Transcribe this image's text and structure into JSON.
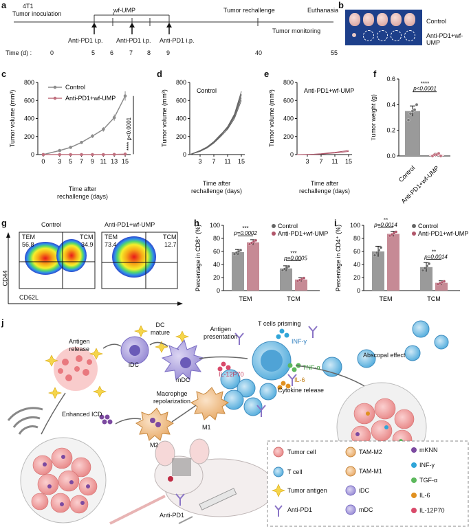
{
  "panels": {
    "a": {
      "label": "a",
      "events": {
        "inoculation_line1": "4T1",
        "inoculation_line2": "Tumor inoculation",
        "treatment": "wf-UMP",
        "rechallenge": "Tumor rechallenge",
        "euthanasia": "Euthanasia",
        "monitoring": "Tumor monitoring",
        "anti_pd1_1": "Anti-PD1 i.p.",
        "anti_pd1_2": "Anti-PD1 i.p.",
        "anti_pd1_3": "Anti-PD1 i.p."
      },
      "time_label": "Time (d) :",
      "ticks": [
        "0",
        "5",
        "6",
        "7",
        "8",
        "9",
        "40",
        "55"
      ]
    },
    "b": {
      "label": "b",
      "row1": "Control",
      "row2": "Anti-PD1+wf-UMP",
      "tumor_count": 5
    },
    "c": {
      "label": "c",
      "ylabel": "Tumor volume (mm³)",
      "xlabel_1": "Time after",
      "xlabel_2": "rechallenge (days)",
      "legend": [
        "Control",
        "Anti-PD1+wf-UMP"
      ],
      "significance": "****",
      "pvalue": "p<0.0001"
    },
    "d": {
      "label": "d",
      "title": "Control",
      "ylabel": "Tumor volume (mm³)",
      "xlabel_1": "Time after",
      "xlabel_2": "rechallenge (days)"
    },
    "e": {
      "label": "e",
      "title": "Anti-PD1+wf-UMP",
      "ylabel": "Tumor volume (mm³)",
      "xlabel_1": "Time after",
      "xlabel_2": "rechallenge (days)"
    },
    "f": {
      "label": "f",
      "ylabel": "Tumor weight (g)",
      "categories": [
        "Control",
        "Anti-PD1+wf-UMP"
      ],
      "significance": "****",
      "pvalue": "p<0.0001"
    },
    "g": {
      "label": "g",
      "titles": [
        "Control",
        "Anti-PD1+wf-UMP"
      ],
      "quadrants": [
        {
          "tem_label": "TEM",
          "tem": "56.8",
          "tcm_label": "TCM",
          "tcm": "34.9"
        },
        {
          "tem_label": "TEM",
          "tem": "73.4",
          "tcm_label": "TCM",
          "tcm": "12.7"
        }
      ],
      "yaxis": "CD44",
      "xaxis": "CD62L"
    },
    "h": {
      "label": "h",
      "ylabel": "Percentage in CD8⁺ (%)",
      "legend": [
        "Control",
        "Anti-PD1+wf-UMP"
      ],
      "sig1": "***",
      "p1": "p=0.0002",
      "sig2": "***",
      "p2": "p=0.0005"
    },
    "i": {
      "label": "i",
      "ylabel": "Percentage in CD4⁺ (%)",
      "legend": [
        "Control",
        "Anti-PD1+wf-UMP"
      ],
      "sig1": "**",
      "p1": "p=0.0014",
      "sig2": "**",
      "p2": "p=0.0014"
    },
    "j": {
      "label": "j",
      "texts": {
        "antigen_release": "Antigen\nrelease",
        "idc": "iDC",
        "dc_mature": "DC\nmature",
        "mdc": "mDC",
        "antigen_presentation": "Antigen\npresentation",
        "t_priming": "T cells prisming",
        "infg": "INF-γ",
        "tnfa": "TNF-α",
        "il6": "IL-6",
        "il12": "IL-12P70",
        "cytokine": "Cytokine release",
        "abscopal": "Abscopal effect",
        "macrophage": "Macrophge\nrepolarization",
        "m1": "M1",
        "m2": "M2",
        "enhanced_icd": "Enhanced ICD",
        "anti_pd1": "Anti-PD1"
      },
      "legend": [
        "Tumor cell",
        "TAM-M2",
        "mKNN",
        "T cell",
        "TAM-M1",
        "INF-γ",
        "Tumor antigen",
        "iDC",
        "TGF-α",
        "Anti-PD1",
        "mDC",
        "IL-6",
        "IL-12P70"
      ]
    }
  },
  "chart_data": [
    {
      "type": "line",
      "panel": "c",
      "x": [
        0,
        3,
        5,
        7,
        9,
        11,
        13,
        15
      ],
      "series": [
        {
          "name": "Control",
          "values": [
            0,
            45,
            80,
            135,
            205,
            280,
            410,
            650
          ]
        },
        {
          "name": "Anti-PD1+wf-UMP",
          "values": [
            0,
            0,
            0,
            0,
            0,
            0,
            2,
            5
          ]
        }
      ],
      "ylim": [
        0,
        800
      ],
      "yticks": [
        0,
        200,
        400,
        600,
        800
      ],
      "xticks": [
        0,
        3,
        5,
        7,
        9,
        11,
        13,
        15
      ]
    },
    {
      "type": "line",
      "panel": "d",
      "x": [
        0,
        3,
        5,
        7,
        9,
        11,
        13,
        15
      ],
      "series": [
        {
          "values": [
            0,
            40,
            80,
            140,
            220,
            310,
            450,
            700
          ]
        },
        {
          "values": [
            0,
            35,
            75,
            130,
            210,
            300,
            430,
            660
          ]
        },
        {
          "values": [
            0,
            45,
            85,
            145,
            225,
            290,
            420,
            630
          ]
        },
        {
          "values": [
            0,
            38,
            72,
            128,
            200,
            280,
            400,
            600
          ]
        },
        {
          "values": [
            0,
            42,
            78,
            138,
            215,
            305,
            440,
            670
          ]
        }
      ],
      "ylim": [
        0,
        800
      ],
      "yticks": [
        0,
        200,
        400,
        600,
        800
      ],
      "xticks": [
        3,
        7,
        11,
        15
      ]
    },
    {
      "type": "line",
      "panel": "e",
      "x": [
        0,
        3,
        5,
        7,
        9,
        11,
        13,
        15
      ],
      "series": [
        {
          "values": [
            0,
            2,
            5,
            10,
            18,
            25,
            35,
            45
          ]
        },
        {
          "values": [
            0,
            1,
            3,
            6,
            12,
            18,
            26,
            35
          ]
        }
      ],
      "ylim": [
        0,
        800
      ],
      "yticks": [
        0,
        200,
        400,
        600,
        800
      ],
      "xticks": [
        3,
        7,
        11,
        15
      ]
    },
    {
      "type": "bar",
      "panel": "f",
      "categories": [
        "Control",
        "Anti-PD1+wf-UMP"
      ],
      "values": [
        0.35,
        0.01
      ],
      "errors": [
        0.04,
        0.01
      ],
      "points": [
        [
          0.28,
          0.33,
          0.35,
          0.36,
          0.4
        ],
        [
          0.0,
          0.01,
          0.01,
          0.02,
          0.0
        ]
      ],
      "ylim": [
        0,
        0.6
      ],
      "yticks": [
        0.0,
        0.2,
        0.4,
        0.6
      ]
    },
    {
      "type": "bar",
      "panel": "h",
      "categories": [
        "TEM",
        "TCM"
      ],
      "series": [
        {
          "name": "Control",
          "values": [
            59,
            34
          ],
          "errors": [
            4,
            4
          ]
        },
        {
          "name": "Anti-PD1+wf-UMP",
          "values": [
            74,
            17
          ],
          "errors": [
            4,
            3
          ]
        }
      ],
      "ylim": [
        0,
        100
      ],
      "yticks": [
        0,
        20,
        40,
        60,
        80,
        100
      ]
    },
    {
      "type": "bar",
      "panel": "i",
      "categories": [
        "TEM",
        "TCM"
      ],
      "series": [
        {
          "name": "Control",
          "values": [
            60,
            36
          ],
          "errors": [
            8,
            7
          ]
        },
        {
          "name": "Anti-PD1+wf-UMP",
          "values": [
            87,
            12
          ],
          "errors": [
            4,
            3
          ]
        }
      ],
      "ylim": [
        0,
        100
      ],
      "yticks": [
        0,
        20,
        40,
        60,
        80,
        100
      ]
    }
  ],
  "colors": {
    "control": "#8c8c8c",
    "treated": "#c0707f",
    "treated_dark": "#b0566a"
  }
}
